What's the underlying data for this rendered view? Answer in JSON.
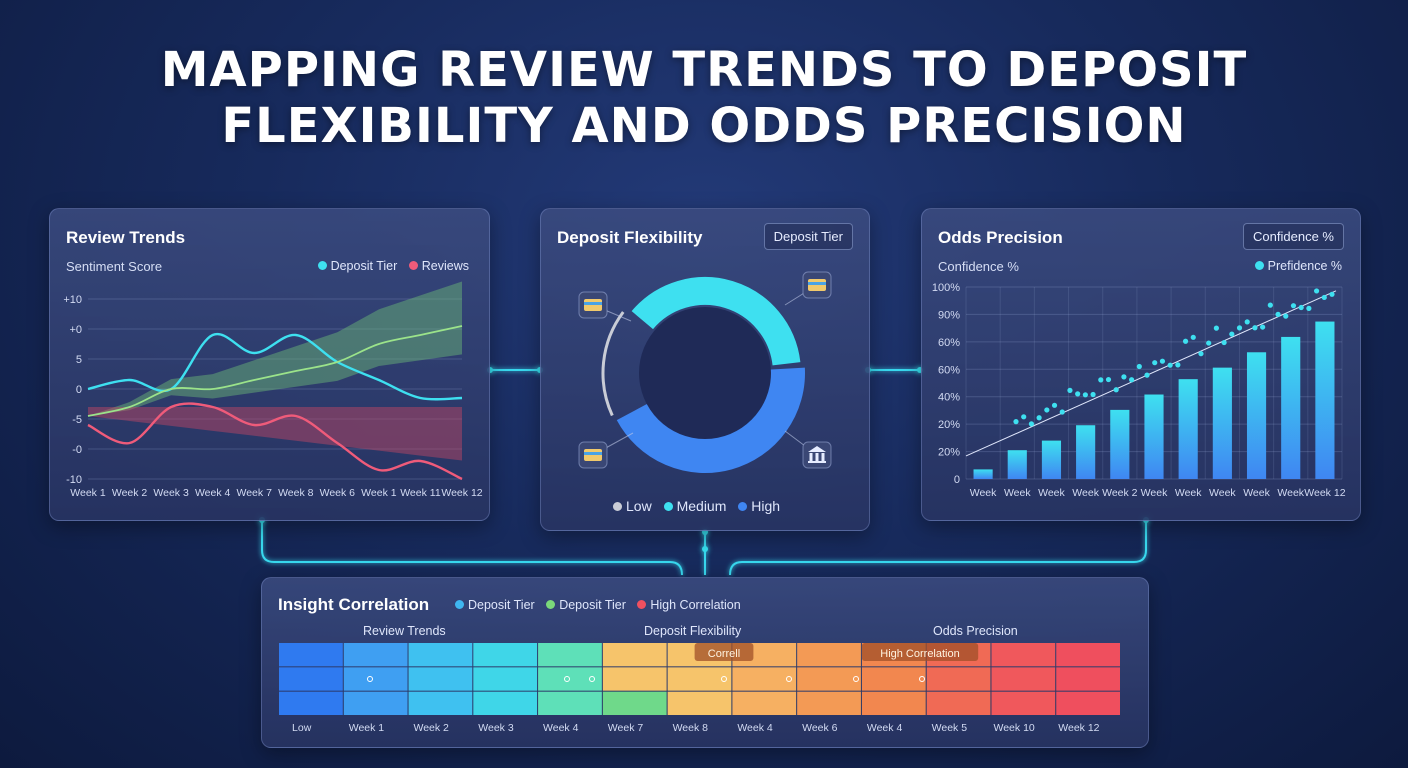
{
  "title_line1": "MAPPING REVIEW TRENDS TO DEPOSIT",
  "title_line2": "FLEXIBILITY AND ODDS PRECISION",
  "colors": {
    "cyan": "#3ee0f0",
    "red": "#ef5b7a",
    "green": "#8ad68a",
    "blue": "#3f86f2",
    "grey": "#c9ccd6"
  },
  "review": {
    "title": "Review Trends",
    "subtitle": "Sentiment Score",
    "legend": [
      {
        "label": "Deposit Tier",
        "color": "#3ee0f0"
      },
      {
        "label": "Reviews",
        "color": "#ef5b7a"
      }
    ]
  },
  "deposit": {
    "title": "Deposit Flexibility",
    "tag": "Deposit Tier",
    "legend": [
      {
        "label": "Low",
        "color": "#c9ccd6"
      },
      {
        "label": "Medium",
        "color": "#3ee0f0"
      },
      {
        "label": "High",
        "color": "#3f86f2"
      }
    ],
    "icons": [
      "card-icon",
      "card-icon",
      "card-icon",
      "bank-icon"
    ]
  },
  "odds": {
    "title": "Odds Precision",
    "tag": "Confidence %",
    "subtitle": "Confidence %",
    "legend": [
      {
        "label": "Prefidence %",
        "color": "#3ee0f0"
      }
    ]
  },
  "insight": {
    "title": "Insight Correlation",
    "legend": [
      {
        "label": "Deposit Tier",
        "color": "#3fb6f0"
      },
      {
        "label": "Deposit Tier",
        "color": "#7bd87a"
      },
      {
        "label": "High Correlation",
        "color": "#f05060"
      }
    ],
    "section_labels": [
      "Review Trends",
      "Deposit Flexibility",
      "Odds Precision"
    ],
    "tooltips": [
      "Correll",
      "High Correlation"
    ]
  },
  "chart_data": [
    {
      "type": "line",
      "title": "Review Trends",
      "ylabel": "Sentiment Score",
      "x": [
        "Week 1",
        "Week 2",
        "Week 3",
        "Week 4",
        "Week 7",
        "Week 8",
        "Week 6",
        "Week 1",
        "Week 11",
        "Week 12"
      ],
      "y_ticks": [
        "+10",
        "+0",
        "5",
        "0",
        "-5",
        "-0",
        "-10"
      ],
      "ylim": [
        -10,
        10
      ],
      "series": [
        {
          "name": "Deposit Tier",
          "color": "#3ee0f0",
          "values": [
            0,
            1,
            0,
            6,
            4,
            6,
            3,
            1,
            -1,
            -1
          ]
        },
        {
          "name": "Reviews",
          "color": "#ef5b7a",
          "values": [
            -4,
            -6,
            -2,
            -2,
            -4,
            -3,
            -6,
            -9,
            -8,
            -10
          ]
        },
        {
          "color": "#9be38a",
          "values": [
            -3,
            -2,
            0,
            0,
            1,
            2,
            3,
            5,
            6,
            7
          ]
        }
      ],
      "grid": true
    },
    {
      "type": "pie",
      "title": "Deposit Flexibility",
      "donut": true,
      "categories": [
        "Low",
        "Medium",
        "High"
      ],
      "values": [
        18,
        38,
        44
      ]
    },
    {
      "type": "bar",
      "title": "Odds Precision",
      "ylabel": "Confidence %",
      "categories": [
        "Week",
        "Week",
        "Week",
        "Week",
        "Week 2",
        "Week",
        "Week",
        "Week",
        "Week",
        "Week",
        "Week 12"
      ],
      "values": [
        5,
        15,
        20,
        28,
        36,
        44,
        52,
        58,
        66,
        74,
        82
      ],
      "y_ticks": [
        "100%",
        "90%",
        "60%",
        "60%",
        "40%",
        "20%",
        "20%",
        "0"
      ],
      "ylim": [
        0,
        100
      ],
      "scatter_series": {
        "name": "Prefidence %",
        "color": "#3ee0f0"
      },
      "grid": true
    },
    {
      "type": "heatmap",
      "title": "Insight Correlation",
      "x": [
        "Low",
        "Week 1",
        "Week 2",
        "Week 3",
        "Week 4",
        "Week 7",
        "Week 8",
        "Week 4",
        "Week 6",
        "Week 4",
        "Week 5",
        "Week 10",
        "Week 12"
      ],
      "rows": 3
    }
  ]
}
